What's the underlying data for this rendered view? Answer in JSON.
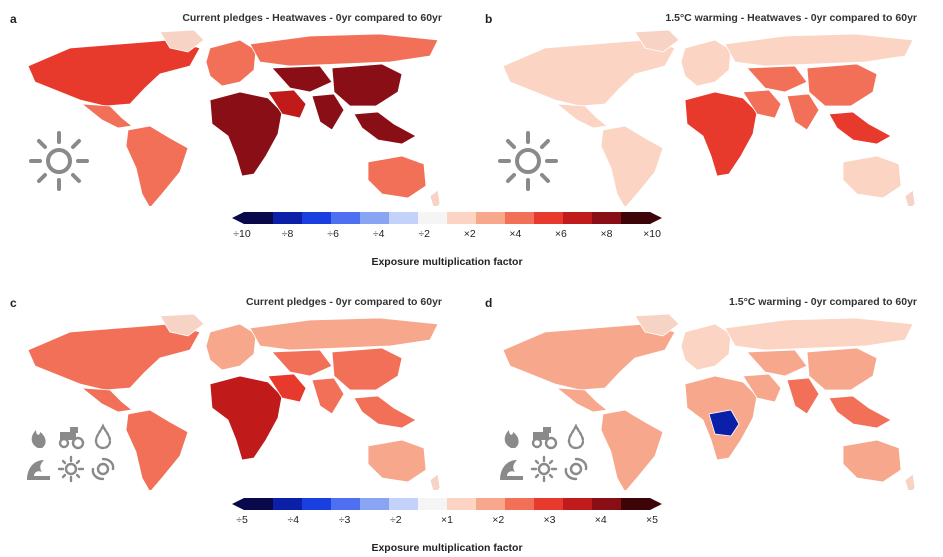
{
  "figure": {
    "panels": [
      {
        "id": "a",
        "letter": "a",
        "title": "Current pledges - Heatwaves - 0yr compared to 60yr",
        "icon_set": [
          "sun-icon"
        ]
      },
      {
        "id": "b",
        "letter": "b",
        "title": "1.5°C warming - Heatwaves - 0yr compared to 60yr",
        "icon_set": [
          "sun-icon"
        ]
      },
      {
        "id": "c",
        "letter": "c",
        "title": "Current pledges - 0yr compared to 60yr",
        "icon_set": [
          "fire-icon",
          "tractor-icon",
          "drop-icon",
          "flood-wave-icon",
          "sun-icon",
          "cyclone-icon"
        ]
      },
      {
        "id": "d",
        "letter": "d",
        "title": "1.5°C warming - 0yr compared to 60yr",
        "icon_set": [
          "fire-icon",
          "tractor-icon",
          "drop-icon",
          "flood-wave-icon",
          "sun-icon",
          "cyclone-icon"
        ]
      }
    ],
    "legend_top": {
      "ticks": [
        "÷10",
        "÷8",
        "÷6",
        "÷4",
        "÷2",
        "×2",
        "×4",
        "×6",
        "×8",
        "×10"
      ],
      "title": "Exposure multiplication factor"
    },
    "legend_bottom": {
      "ticks": [
        "÷5",
        "÷4",
        "÷3",
        "÷2",
        "×1",
        "×2",
        "×3",
        "×4",
        "×5"
      ],
      "title": "Exposure multiplication factor"
    },
    "colors": {
      "scale": [
        "#08084a",
        "#0b1fa8",
        "#1a3fe0",
        "#4d6ff0",
        "#8aa4f4",
        "#c4d2fa",
        "#f5f5f5",
        "#fbd4c4",
        "#f7a88c",
        "#f27058",
        "#e83a2c",
        "#c01a1a",
        "#8a0e16",
        "#3d0508"
      ],
      "land_neutral": "#f7d3c6",
      "ocean": "#ffffff",
      "icon": "#8a8a8a"
    }
  },
  "chart_data": [
    {
      "type": "heatmap",
      "title": "Current pledges - Heatwaves - 0yr compared to 60yr",
      "legend": "Exposure multiplication factor",
      "scale_ticks": [
        "÷10",
        "÷8",
        "÷6",
        "÷4",
        "÷2",
        "×2",
        "×4",
        "×6",
        "×8",
        "×10"
      ],
      "regions": [
        {
          "name": "North America",
          "value": 6
        },
        {
          "name": "Mexico",
          "value": 5
        },
        {
          "name": "South America",
          "value": 5
        },
        {
          "name": "Europe",
          "value": 4
        },
        {
          "name": "Africa",
          "value": 9
        },
        {
          "name": "Middle East",
          "value": 7
        },
        {
          "name": "Russia",
          "value": 5
        },
        {
          "name": "Central Asia",
          "value": 9
        },
        {
          "name": "South Asia",
          "value": 8
        },
        {
          "name": "China",
          "value": 8
        },
        {
          "name": "Southeast Asia",
          "value": 9
        },
        {
          "name": "Australia",
          "value": 4
        }
      ]
    },
    {
      "type": "heatmap",
      "title": "1.5°C warming - Heatwaves - 0yr compared to 60yr",
      "legend": "Exposure multiplication factor",
      "scale_ticks": [
        "÷10",
        "÷8",
        "÷6",
        "÷4",
        "÷2",
        "×2",
        "×4",
        "×6",
        "×8",
        "×10"
      ],
      "regions": [
        {
          "name": "North America",
          "value": 2
        },
        {
          "name": "Mexico",
          "value": 2
        },
        {
          "name": "South America",
          "value": 2
        },
        {
          "name": "Europe",
          "value": 2
        },
        {
          "name": "Africa",
          "value": 6
        },
        {
          "name": "Middle East",
          "value": 4
        },
        {
          "name": "Russia",
          "value": 2
        },
        {
          "name": "Central Asia",
          "value": 4
        },
        {
          "name": "South Asia",
          "value": 4
        },
        {
          "name": "China",
          "value": 5
        },
        {
          "name": "Southeast Asia",
          "value": 6
        },
        {
          "name": "Australia",
          "value": 2
        }
      ]
    },
    {
      "type": "heatmap",
      "title": "Current pledges - 0yr compared to 60yr",
      "legend": "Exposure multiplication factor",
      "scale_ticks": [
        "÷5",
        "÷4",
        "÷3",
        "÷2",
        "×1",
        "×2",
        "×3",
        "×4",
        "×5"
      ],
      "regions": [
        {
          "name": "North America",
          "value": 2
        },
        {
          "name": "Mexico",
          "value": 2
        },
        {
          "name": "South America",
          "value": 2
        },
        {
          "name": "Europe",
          "value": 1.5
        },
        {
          "name": "Africa",
          "value": 3.5
        },
        {
          "name": "Middle East",
          "value": 3
        },
        {
          "name": "Russia",
          "value": 1.5
        },
        {
          "name": "Central Asia",
          "value": 2
        },
        {
          "name": "South Asia",
          "value": 2.5
        },
        {
          "name": "China",
          "value": 2
        },
        {
          "name": "Southeast Asia",
          "value": 2.5
        },
        {
          "name": "Australia",
          "value": 1.5
        }
      ]
    },
    {
      "type": "heatmap",
      "title": "1.5°C warming - 0yr compared to 60yr",
      "legend": "Exposure multiplication factor",
      "scale_ticks": [
        "÷5",
        "÷4",
        "÷3",
        "÷2",
        "×1",
        "×2",
        "×3",
        "×4",
        "×5"
      ],
      "regions": [
        {
          "name": "North America",
          "value": 1.5
        },
        {
          "name": "Mexico",
          "value": 1.5
        },
        {
          "name": "South America",
          "value": 1.5
        },
        {
          "name": "Europe",
          "value": 1.2
        },
        {
          "name": "Africa",
          "value": 1.5
        },
        {
          "name": "Central Africa",
          "value": -4
        },
        {
          "name": "Middle East",
          "value": 1.5
        },
        {
          "name": "Russia",
          "value": 1.2
        },
        {
          "name": "Central Asia",
          "value": 1.5
        },
        {
          "name": "South Asia",
          "value": 2
        },
        {
          "name": "China",
          "value": 1.5
        },
        {
          "name": "Southeast Asia",
          "value": 2
        },
        {
          "name": "Australia",
          "value": 1.5
        }
      ]
    }
  ]
}
